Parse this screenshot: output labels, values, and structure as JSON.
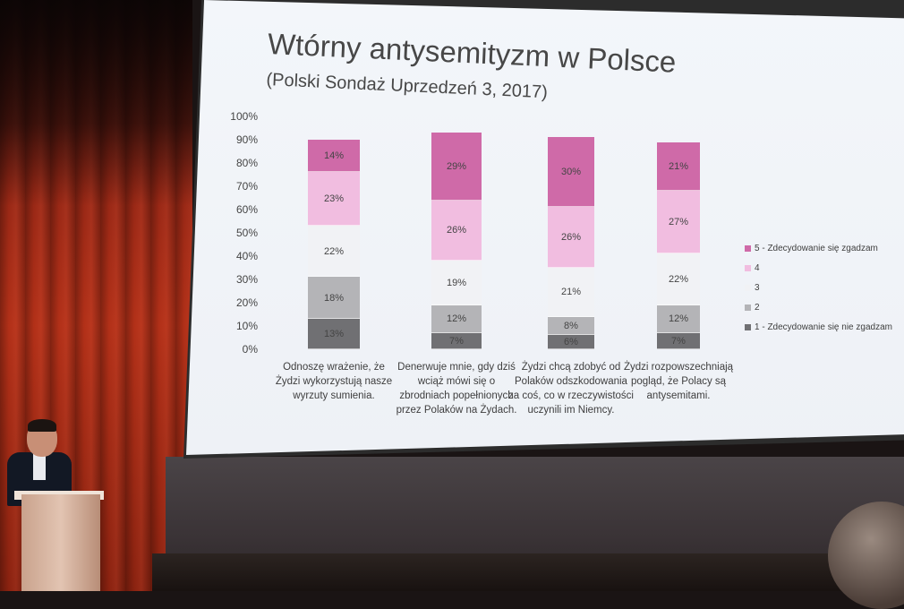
{
  "slide": {
    "title": "Wtórny antysemityzm w Polsce",
    "subtitle": "(Polski Sondaż Uprzedzeń 3, 2017)"
  },
  "colors": {
    "lvl5": "#cf6aa8",
    "lvl4": "#f1bde0",
    "lvl3": "#f1f2f5",
    "lvl2": "#b4b4b7",
    "lvl1": "#707073"
  },
  "chart_data": {
    "type": "bar",
    "stacked": true,
    "title": "Wtórny antysemityzm w Polsce",
    "subtitle": "(Polski Sondaż Uprzedzeń 3, 2017)",
    "y_ticks": [
      "100%",
      "90%",
      "80%",
      "70%",
      "60%",
      "50%",
      "40%",
      "30%",
      "20%",
      "10%",
      "0%"
    ],
    "ylim": [
      0,
      100
    ],
    "categories": [
      "Odnoszę wrażenie, że Żydzi wykorzystują nasze wyrzuty sumienia.",
      "Denerwuje mnie, gdy dziś wciąż mówi się o zbrodniach popełnionych przez Polaków na Żydach.",
      "Żydzi chcą zdobyć od Polaków odszkodowania za coś, co w rzeczywistości uczynili im Niemcy.",
      "Żydzi rozpowszechniają pogląd, że Polacy są antysemitami."
    ],
    "series": [
      {
        "name": "1 - Zdecydowanie się nie zgadzam",
        "values": [
          13,
          7,
          6,
          7
        ],
        "labels": [
          "13%",
          "7%",
          "6%",
          "7%"
        ]
      },
      {
        "name": "2",
        "values": [
          18,
          12,
          8,
          12
        ],
        "labels": [
          "18%",
          "12%",
          "8%",
          "12%"
        ]
      },
      {
        "name": "3",
        "values": [
          22,
          19,
          21,
          22
        ],
        "labels": [
          "22%",
          "19%",
          "21%",
          "22%"
        ]
      },
      {
        "name": "4",
        "values": [
          23,
          26,
          26,
          27
        ],
        "labels": [
          "23%",
          "26%",
          "26%",
          "27%"
        ]
      },
      {
        "name": "5 - Zdecydowanie się zgadzam",
        "values": [
          14,
          29,
          30,
          21
        ],
        "labels": [
          "14%",
          "29%",
          "30%",
          "21%"
        ]
      }
    ],
    "legend_order": [
      "5 - Zdecydowanie się zgadzam",
      "4",
      "3",
      "2",
      "1 - Zdecydowanie się nie zgadzam"
    ],
    "legend_position": "right"
  }
}
